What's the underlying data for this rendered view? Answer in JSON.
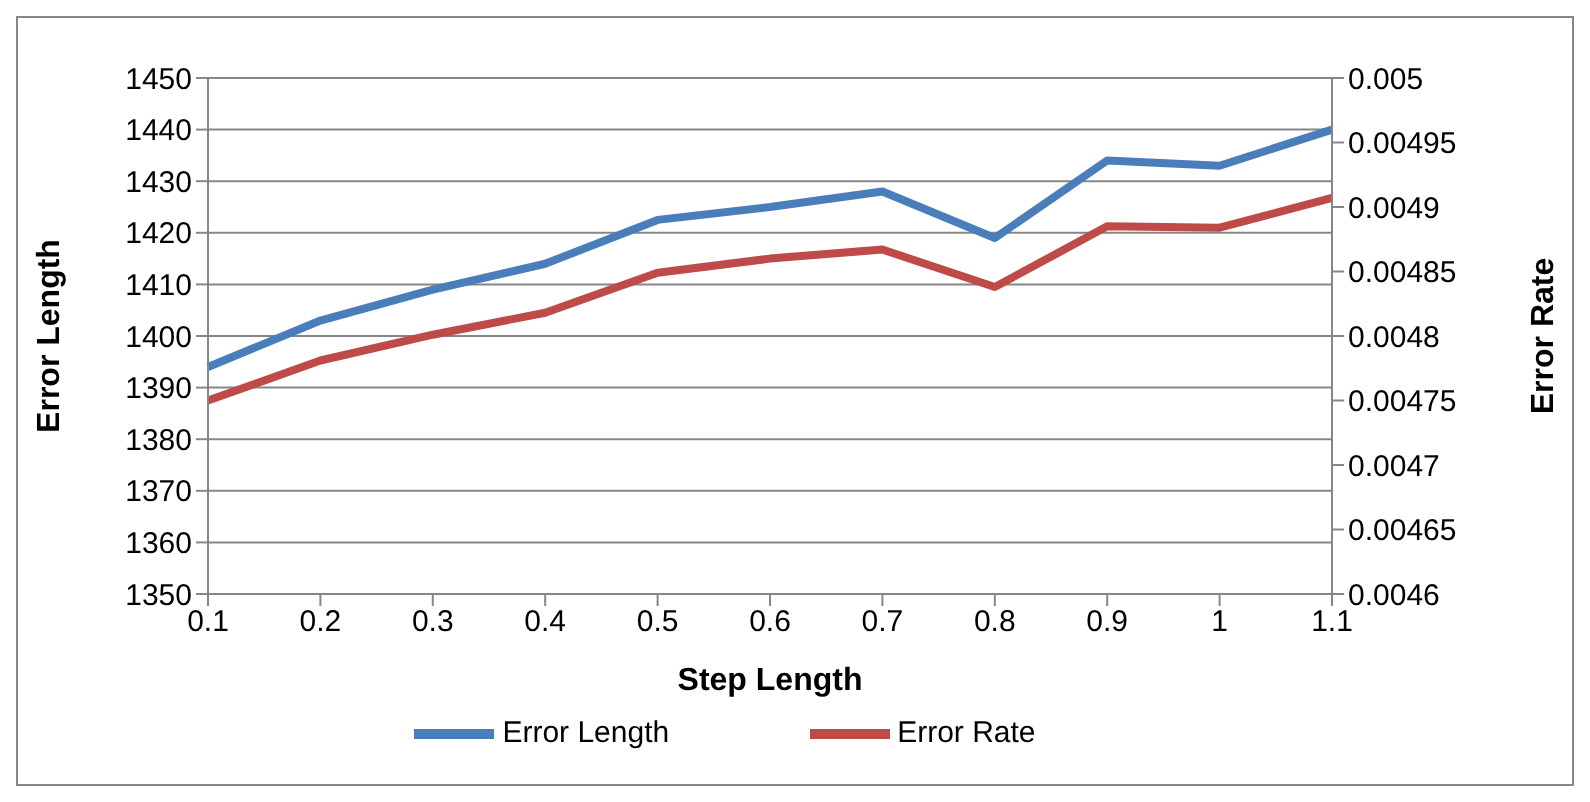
{
  "chart_data": {
    "type": "line",
    "xlabel": "Step Length",
    "ylabel": "Error Length",
    "y2label": "Error Rate",
    "categories": [
      "0.1",
      "0.2",
      "0.3",
      "0.4",
      "0.5",
      "0.6",
      "0.7",
      "0.8",
      "0.9",
      "1",
      "1.1"
    ],
    "series": [
      {
        "name": "Error Length",
        "color": "#4a7ebb",
        "values": [
          1394,
          1403,
          1409,
          1414,
          1422.5,
          1425,
          1428,
          1419,
          1434,
          1433,
          1440
        ]
      },
      {
        "name": "Error Rate",
        "color": "#be4b48",
        "axis": "y2",
        "values": [
          0.00475,
          0.004781,
          0.004801,
          0.004818,
          0.004849,
          0.00486,
          0.004867,
          0.004838,
          0.004885,
          0.004884,
          0.004907
        ]
      }
    ],
    "ylim": [
      1350,
      1450
    ],
    "yticks": [
      1350,
      1360,
      1370,
      1380,
      1390,
      1400,
      1410,
      1420,
      1430,
      1440,
      1450
    ],
    "y2lim": [
      0.0046,
      0.005
    ],
    "y2ticks": [
      0.0046,
      0.00465,
      0.0047,
      0.00475,
      0.0048,
      0.00485,
      0.0049,
      0.00495,
      0.005
    ],
    "grid": "y",
    "legend": "bottom",
    "marker": "none",
    "line_style": "solid"
  }
}
